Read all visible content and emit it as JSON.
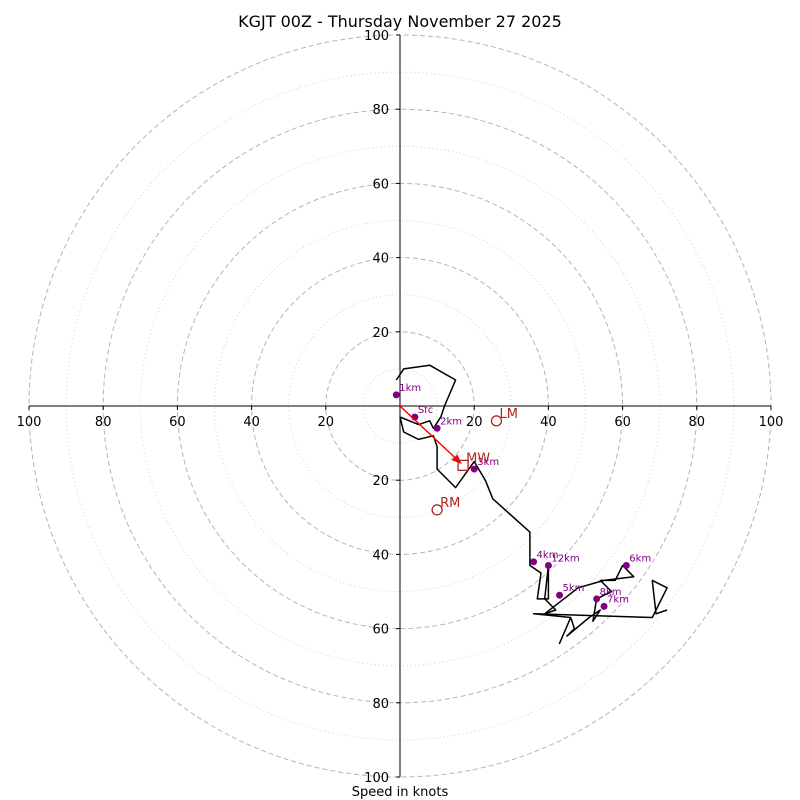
{
  "chart_data": {
    "type": "hodograph",
    "title": "KGJT 00Z - Thursday November 27 2025",
    "xlabel": "Speed in knots",
    "units": "knots",
    "axis_range": [
      -100,
      100
    ],
    "ring_major_values": [
      20,
      40,
      60,
      80,
      100
    ],
    "ring_minor_values": [
      10,
      30,
      50,
      70,
      90
    ],
    "tick_labels": {
      "left": [
        "100",
        "80",
        "60",
        "40",
        "20"
      ],
      "right": [
        "20",
        "40",
        "60",
        "80",
        "100"
      ],
      "top": [
        "20",
        "40",
        "60",
        "80",
        "100"
      ],
      "bottom": [
        "20",
        "40",
        "60",
        "80",
        "100"
      ]
    },
    "trace": {
      "color": "#000000",
      "points": [
        [
          -1,
          7
        ],
        [
          1,
          10
        ],
        [
          8,
          11
        ],
        [
          15,
          7
        ],
        [
          12,
          0
        ],
        [
          11,
          -3
        ],
        [
          9,
          -6
        ],
        [
          8,
          -4
        ],
        [
          5,
          -5
        ],
        [
          0,
          -3
        ],
        [
          1,
          -7
        ],
        [
          5,
          -9
        ],
        [
          9,
          -8
        ],
        [
          10,
          -11
        ],
        [
          10,
          -17
        ],
        [
          15,
          -22
        ],
        [
          20,
          -15
        ],
        [
          23,
          -20
        ],
        [
          25,
          -25
        ],
        [
          35,
          -34
        ],
        [
          35,
          -43
        ],
        [
          38,
          -45
        ],
        [
          37,
          -52
        ],
        [
          40,
          -52
        ],
        [
          40,
          -43
        ],
        [
          39,
          -52
        ],
        [
          42,
          -55
        ],
        [
          39,
          -56
        ],
        [
          48,
          -49
        ],
        [
          55,
          -47
        ],
        [
          63,
          -46
        ],
        [
          60,
          -43
        ],
        [
          58,
          -47
        ],
        [
          54,
          -47
        ],
        [
          57,
          -50
        ],
        [
          53,
          -52
        ],
        [
          52,
          -58
        ],
        [
          54,
          -55
        ],
        [
          51,
          -57
        ],
        [
          45,
          -62
        ],
        [
          47,
          -60
        ],
        [
          46,
          -57
        ],
        [
          43,
          -64
        ],
        [
          46,
          -57
        ],
        [
          36,
          -56
        ],
        [
          68,
          -57
        ],
        [
          72,
          -49
        ],
        [
          68,
          -47
        ],
        [
          69,
          -56
        ],
        [
          72,
          -55
        ]
      ]
    },
    "height_markers": {
      "color": "#800080",
      "points": [
        {
          "label": "Sfc",
          "u": 4,
          "v": -3
        },
        {
          "label": "1km",
          "u": -1,
          "v": 3
        },
        {
          "label": "2km",
          "u": 10,
          "v": -6
        },
        {
          "label": "3km",
          "u": 20,
          "v": -17
        },
        {
          "label": "4km",
          "u": 36,
          "v": -42
        },
        {
          "label": "5km",
          "u": 43,
          "v": -51
        },
        {
          "label": "6km",
          "u": 61,
          "v": -43
        },
        {
          "label": "7km",
          "u": 55,
          "v": -54
        },
        {
          "label": "8km",
          "u": 53,
          "v": -52
        },
        {
          "label": "12km",
          "u": 40,
          "v": -43
        }
      ]
    },
    "motions": {
      "color": "#b22222",
      "RM": {
        "label": "RM",
        "u": 10,
        "v": -28
      },
      "LM": {
        "label": "LM",
        "u": 26,
        "v": -4
      },
      "MW": {
        "label": "MW",
        "u": 17,
        "v": -16
      }
    },
    "shear_arrow": {
      "color": "#ff0000",
      "from": [
        0,
        0
      ],
      "to": [
        17,
        -16
      ]
    }
  }
}
